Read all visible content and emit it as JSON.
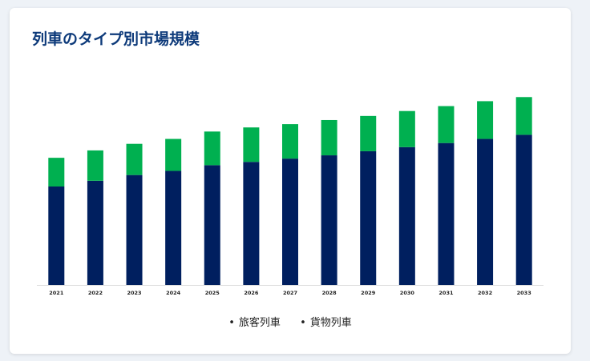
{
  "title": "列車のタイプ別市場規模",
  "chart_data": {
    "type": "bar",
    "stacked": true,
    "categories": [
      "2021",
      "2022",
      "2023",
      "2024",
      "2025",
      "2026",
      "2027",
      "2028",
      "2029",
      "2030",
      "2031",
      "2032",
      "2033"
    ],
    "series": [
      {
        "name": "旅客列車",
        "color": "#001f5f",
        "values": [
          120,
          127,
          134,
          139,
          146,
          150,
          154,
          158,
          163,
          168,
          173,
          178,
          183
        ]
      },
      {
        "name": "貨物列車",
        "color": "#00b050",
        "values": [
          35,
          37,
          38,
          39,
          41,
          42,
          42,
          43,
          43,
          44,
          45,
          46,
          46
        ]
      }
    ],
    "ylim": [
      0,
      240
    ],
    "grid": false,
    "legend": "bottom-center"
  },
  "legend": {
    "bullet": "•",
    "items": [
      "旅客列車",
      "貨物列車"
    ]
  }
}
